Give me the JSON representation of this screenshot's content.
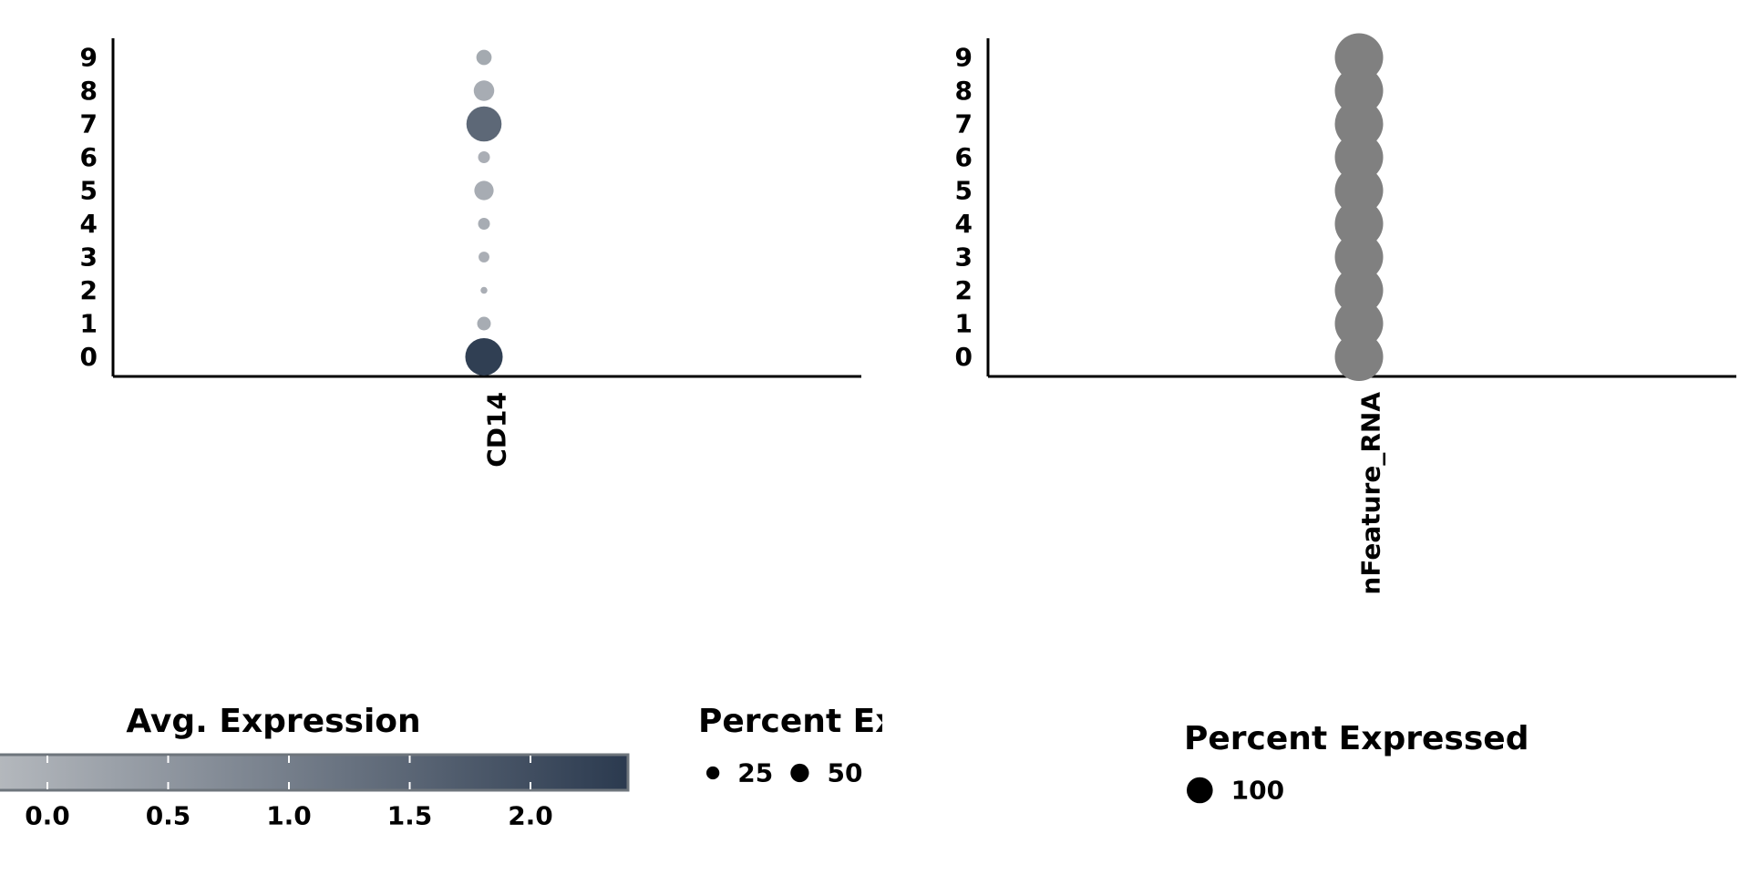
{
  "chart_data": [
    {
      "type": "scatter",
      "kind": "dot-plot",
      "feature": "CD14",
      "clusters": [
        "0",
        "1",
        "2",
        "3",
        "4",
        "5",
        "6",
        "7",
        "8",
        "9"
      ],
      "percent_expressed": [
        60,
        8,
        2,
        5,
        6,
        16,
        6,
        53,
        18,
        10
      ],
      "avg_expression": [
        2.3,
        0.05,
        0.0,
        0.0,
        0.05,
        0.05,
        0.0,
        1.45,
        0.05,
        0.1
      ]
    },
    {
      "type": "scatter",
      "kind": "dot-plot",
      "feature": "nFeature_RNA",
      "clusters": [
        "0",
        "1",
        "2",
        "3",
        "4",
        "5",
        "6",
        "7",
        "8",
        "9"
      ],
      "percent_expressed": [
        100,
        100,
        100,
        100,
        100,
        100,
        100,
        100,
        100,
        100
      ],
      "color": "#808080"
    }
  ],
  "legends": {
    "color": {
      "title": "Avg. Expression",
      "ticks": [
        "0.0",
        "0.5",
        "1.0",
        "1.5",
        "2.0"
      ],
      "low_color": "#B4B8BD",
      "high_color": "#2B3A4F"
    },
    "size_left": {
      "title": "Percent Expressed",
      "entries": [
        {
          "label": "25",
          "value": 25
        },
        {
          "label": "50",
          "value": 50
        }
      ]
    },
    "size_right": {
      "title": "Percent Expressed",
      "entries": [
        {
          "label": "100",
          "value": 100
        }
      ]
    }
  }
}
